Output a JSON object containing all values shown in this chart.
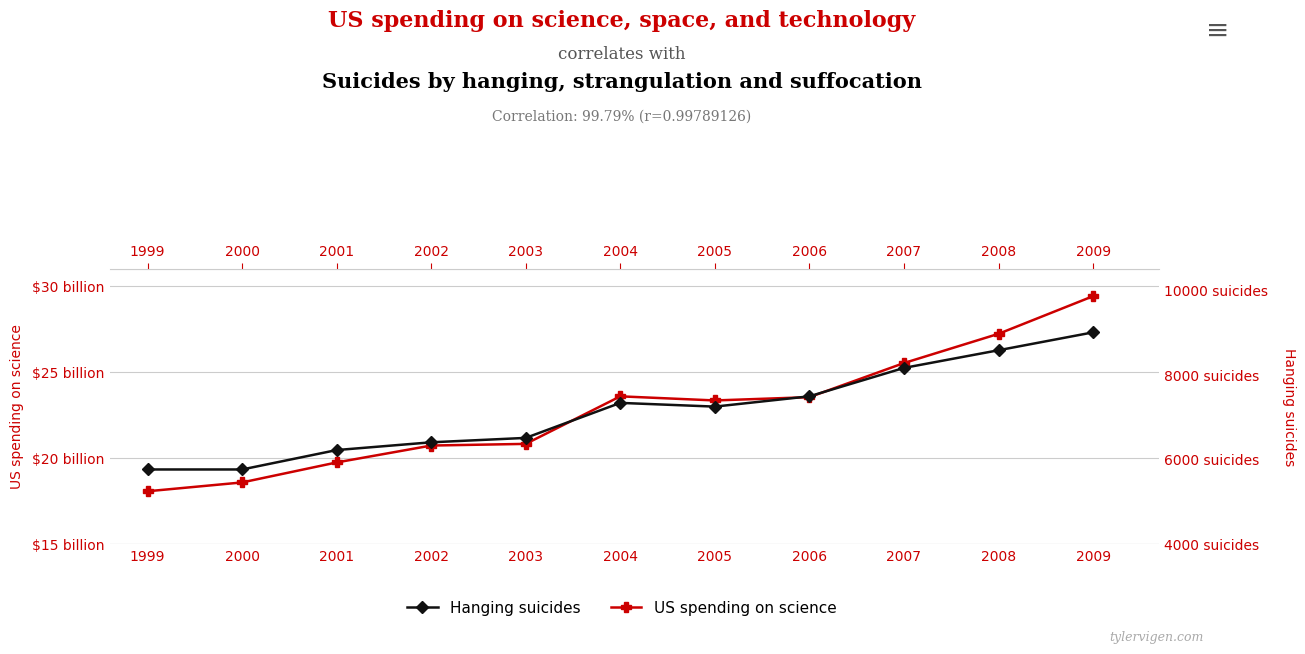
{
  "years": [
    1999,
    2000,
    2001,
    2002,
    2003,
    2004,
    2005,
    2006,
    2007,
    2008,
    2009
  ],
  "hanging_suicides": [
    5765,
    5765,
    6223,
    6406,
    6510,
    7336,
    7248,
    7491,
    8161,
    8578,
    9000
  ],
  "us_spending_billions": [
    18.079,
    18.592,
    19.753,
    20.734,
    20.831,
    23.592,
    23.353,
    23.544,
    25.525,
    27.223,
    29.409
  ],
  "title_line1": "US spending on science, space, and technology",
  "title_line2": "correlates with",
  "title_line3": "Suicides by hanging, strangulation and suffocation",
  "correlation_text": "Correlation: 99.79% (r=0.99789126)",
  "ylabel_left": "US spending on science",
  "ylabel_right": "Hanging suicides",
  "legend_black": "Hanging suicides",
  "legend_red": "US spending on science",
  "watermark": "tylervigen.com",
  "title1_color": "#cc0000",
  "title3_color": "#000000",
  "left_axis_color": "#cc0000",
  "right_axis_color": "#cc0000",
  "xtick_color": "#cc0000",
  "line_black_color": "#111111",
  "line_red_color": "#cc0000",
  "bg_color": "#ffffff",
  "grid_color": "#cccccc",
  "ylim_left": [
    15,
    31
  ],
  "ylim_right": [
    4000,
    10500
  ],
  "yticks_left": [
    15,
    20,
    25,
    30
  ],
  "yticks_left_labels": [
    "$15 billion",
    "$20 billion",
    "$25 billion",
    "$30 billion"
  ],
  "yticks_right": [
    4000,
    6000,
    8000,
    10000
  ],
  "yticks_right_labels": [
    "4000 suicides",
    "6000 suicides",
    "8000 suicides",
    "10000 suicides"
  ]
}
